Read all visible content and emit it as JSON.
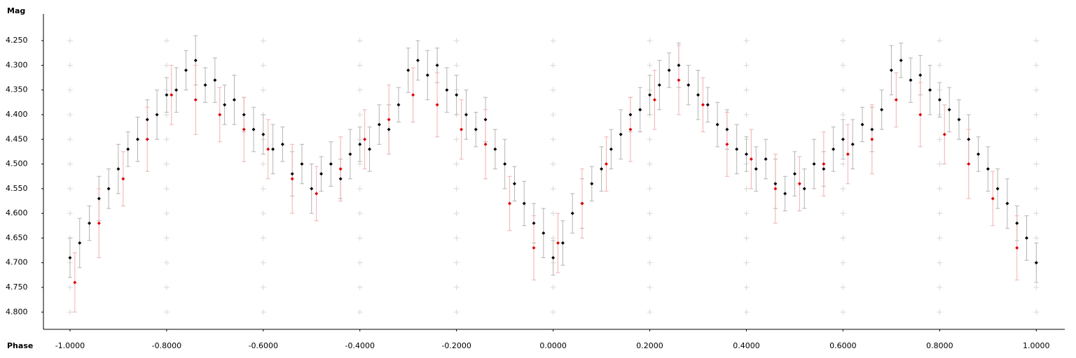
{
  "chart_data": {
    "type": "scatter",
    "y_label": "Mag",
    "x_label": "Phase",
    "xlim": [
      -1.055,
      1.059
    ],
    "ylim": [
      4.835,
      4.196
    ],
    "xticks": [
      {
        "value": -1.0,
        "label": "-1.0000"
      },
      {
        "value": -0.8,
        "label": "-0.8000"
      },
      {
        "value": -0.6,
        "label": "-0.6000"
      },
      {
        "value": -0.4,
        "label": "-0.4000"
      },
      {
        "value": -0.2,
        "label": "-0.2000"
      },
      {
        "value": 0,
        "label": "0.0000"
      },
      {
        "value": 0.2,
        "label": "0.2000"
      },
      {
        "value": 0.4,
        "label": "0.4000"
      },
      {
        "value": 0.6,
        "label": "0.6000"
      },
      {
        "value": 0.8,
        "label": "0.8000"
      },
      {
        "value": 1.0,
        "label": "1.0000"
      }
    ],
    "yticks": [
      {
        "value": 4.25,
        "label": "4.250"
      },
      {
        "value": 4.3,
        "label": "4.300"
      },
      {
        "value": 4.35,
        "label": "4.350"
      },
      {
        "value": 4.4,
        "label": "4.400"
      },
      {
        "value": 4.45,
        "label": "4.450"
      },
      {
        "value": 4.5,
        "label": "4.500"
      },
      {
        "value": 4.55,
        "label": "4.550"
      },
      {
        "value": 4.6,
        "label": "4.600"
      },
      {
        "value": 4.65,
        "label": "4.650"
      },
      {
        "value": 4.7,
        "label": "4.700"
      },
      {
        "value": 4.75,
        "label": "4.750"
      },
      {
        "value": 4.8,
        "label": "4.800"
      }
    ],
    "grid": true,
    "series": [
      {
        "color": "#000000",
        "error_color": "#b4b4b4",
        "x": [
          -1.0,
          -0.98,
          -0.96,
          -0.94,
          -0.92,
          -0.9,
          -0.88,
          -0.86,
          -0.84,
          -0.82,
          -0.8,
          -0.78,
          -0.76,
          -0.74,
          -0.72,
          -0.7,
          -0.68,
          -0.66,
          -0.64,
          -0.62,
          -0.6,
          -0.58,
          -0.56,
          -0.54,
          -0.52,
          -0.5,
          -0.48,
          -0.46,
          -0.44,
          -0.42,
          -0.4,
          -0.38,
          -0.36,
          -0.34,
          -0.32,
          -0.3,
          -0.28,
          -0.26,
          -0.24,
          -0.22,
          -0.2,
          -0.18,
          -0.16,
          -0.14,
          -0.12,
          -0.1,
          -0.08,
          -0.06,
          -0.04,
          -0.02,
          0.0,
          0.02,
          0.04,
          0.06,
          0.08,
          0.1,
          0.12,
          0.14,
          0.16,
          0.18,
          0.2,
          0.22,
          0.24,
          0.26,
          0.28,
          0.3,
          0.32,
          0.34,
          0.36,
          0.38,
          0.4,
          0.42,
          0.44,
          0.46,
          0.48,
          0.5,
          0.52,
          0.54,
          0.56,
          0.58,
          0.6,
          0.62,
          0.64,
          0.66,
          0.68,
          0.7,
          0.72,
          0.74,
          0.76,
          0.78,
          0.8,
          0.82,
          0.84,
          0.86,
          0.88,
          0.9,
          0.92,
          0.94,
          0.96,
          0.98,
          1.0
        ],
        "values": [
          4.69,
          4.66,
          4.62,
          4.57,
          4.55,
          4.51,
          4.47,
          4.45,
          4.41,
          4.4,
          4.36,
          4.35,
          4.31,
          4.29,
          4.34,
          4.33,
          4.38,
          4.37,
          4.4,
          4.43,
          4.44,
          4.47,
          4.46,
          4.52,
          4.5,
          4.55,
          4.52,
          4.5,
          4.53,
          4.48,
          4.46,
          4.47,
          4.42,
          4.43,
          4.38,
          4.31,
          4.29,
          4.32,
          4.3,
          4.35,
          4.36,
          4.4,
          4.43,
          4.41,
          4.47,
          4.5,
          4.54,
          4.58,
          4.62,
          4.64,
          4.69,
          4.66,
          4.6,
          4.58,
          4.54,
          4.51,
          4.47,
          4.44,
          4.4,
          4.39,
          4.36,
          4.34,
          4.31,
          4.3,
          4.34,
          4.36,
          4.38,
          4.42,
          4.43,
          4.47,
          4.48,
          4.51,
          4.49,
          4.54,
          4.56,
          4.52,
          4.55,
          4.5,
          4.51,
          4.47,
          4.45,
          4.46,
          4.42,
          4.43,
          4.39,
          4.31,
          4.29,
          4.33,
          4.32,
          4.35,
          4.37,
          4.39,
          4.41,
          4.45,
          4.48,
          4.51,
          4.55,
          4.58,
          4.62,
          4.65,
          4.7
        ],
        "errors": [
          0.04,
          0.05,
          0.035,
          0.045,
          0.04,
          0.05,
          0.035,
          0.045,
          0.04,
          0.05,
          0.035,
          0.045,
          0.04,
          0.05,
          0.035,
          0.045,
          0.04,
          0.05,
          0.035,
          0.045,
          0.04,
          0.05,
          0.035,
          0.045,
          0.04,
          0.05,
          0.035,
          0.045,
          0.04,
          0.05,
          0.035,
          0.045,
          0.04,
          0.05,
          0.035,
          0.045,
          0.04,
          0.05,
          0.035,
          0.045,
          0.04,
          0.05,
          0.035,
          0.045,
          0.04,
          0.05,
          0.035,
          0.045,
          0.04,
          0.05,
          0.035,
          0.045,
          0.04,
          0.05,
          0.035,
          0.045,
          0.04,
          0.05,
          0.035,
          0.045,
          0.04,
          0.05,
          0.035,
          0.045,
          0.04,
          0.05,
          0.035,
          0.045,
          0.04,
          0.05,
          0.035,
          0.045,
          0.04,
          0.05,
          0.035,
          0.045,
          0.04,
          0.05,
          0.035,
          0.045,
          0.04,
          0.05,
          0.035,
          0.045,
          0.04,
          0.05,
          0.035,
          0.045,
          0.04,
          0.05,
          0.035,
          0.045,
          0.04,
          0.05,
          0.035,
          0.045,
          0.04,
          0.05,
          0.035,
          0.045,
          0.04
        ]
      },
      {
        "color": "#e00000",
        "error_color": "#f2b0b0",
        "x": [
          -0.99,
          -0.94,
          -0.89,
          -0.84,
          -0.79,
          -0.74,
          -0.69,
          -0.64,
          -0.59,
          -0.54,
          -0.49,
          -0.44,
          -0.39,
          -0.34,
          -0.29,
          -0.24,
          -0.19,
          -0.14,
          -0.09,
          -0.04,
          0.01,
          0.06,
          0.11,
          0.16,
          0.21,
          0.26,
          0.31,
          0.36,
          0.41,
          0.46,
          0.51,
          0.56,
          0.61,
          0.66,
          0.71,
          0.76,
          0.81,
          0.86,
          0.91,
          0.96
        ],
        "values": [
          4.74,
          4.62,
          4.53,
          4.45,
          4.36,
          4.37,
          4.4,
          4.43,
          4.47,
          4.53,
          4.56,
          4.51,
          4.45,
          4.41,
          4.36,
          4.38,
          4.43,
          4.46,
          4.58,
          4.67,
          4.66,
          4.58,
          4.5,
          4.43,
          4.37,
          4.33,
          4.38,
          4.46,
          4.49,
          4.55,
          4.54,
          4.5,
          4.48,
          4.45,
          4.37,
          4.4,
          4.44,
          4.5,
          4.57,
          4.67
        ],
        "errors": [
          0.06,
          0.07,
          0.055,
          0.065,
          0.06,
          0.07,
          0.055,
          0.065,
          0.06,
          0.07,
          0.055,
          0.065,
          0.06,
          0.07,
          0.055,
          0.065,
          0.06,
          0.07,
          0.055,
          0.065,
          0.06,
          0.07,
          0.055,
          0.065,
          0.06,
          0.07,
          0.055,
          0.065,
          0.06,
          0.07,
          0.055,
          0.065,
          0.06,
          0.07,
          0.055,
          0.065,
          0.06,
          0.07,
          0.055,
          0.065
        ]
      }
    ]
  }
}
